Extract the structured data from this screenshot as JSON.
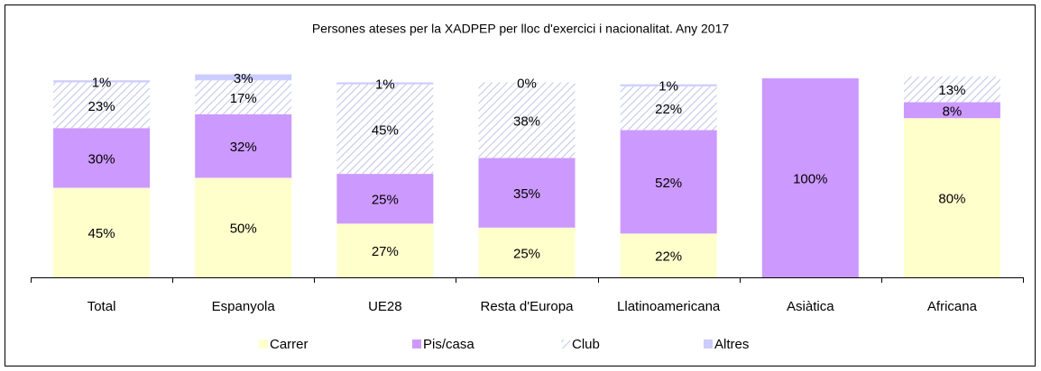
{
  "chart_data": {
    "type": "bar",
    "stacked": true,
    "title": "Persones ateses per la XADPEP per lloc d'exercici i nacionalitat. Any 2017",
    "categories": [
      "Total",
      "Espanyola",
      "UE28",
      "Resta d'Europa",
      "Llatinoamericana",
      "Asiàtica",
      "Africana"
    ],
    "ylim": [
      0,
      100
    ],
    "series": [
      {
        "name": "Carrer",
        "color": "#ffffcc",
        "values": [
          45,
          50,
          27,
          25,
          22,
          0,
          80
        ],
        "value_labels": [
          "45%",
          "50%",
          "27%",
          "25%",
          "22%",
          null,
          "80%"
        ]
      },
      {
        "name": "Pis/casa",
        "color": "#cc99ff",
        "values": [
          30,
          32,
          25,
          35,
          52,
          100,
          8
        ],
        "value_labels": [
          "30%",
          "32%",
          "25%",
          "35%",
          "52%",
          "100%",
          "8%"
        ]
      },
      {
        "name": "Club",
        "color": "#c0c4e8",
        "pattern": "hatch",
        "values": [
          23,
          17,
          45,
          38,
          22,
          0,
          13
        ],
        "value_labels": [
          "23%",
          "17%",
          "45%",
          "38%",
          "22%",
          null,
          "13%"
        ]
      },
      {
        "name": "Altres",
        "color": "#ccccff",
        "values": [
          1,
          3,
          1,
          0,
          1,
          0,
          0
        ],
        "value_labels": [
          "1%",
          "3%",
          "1%",
          "0%",
          "1%",
          null,
          null
        ]
      }
    ]
  }
}
